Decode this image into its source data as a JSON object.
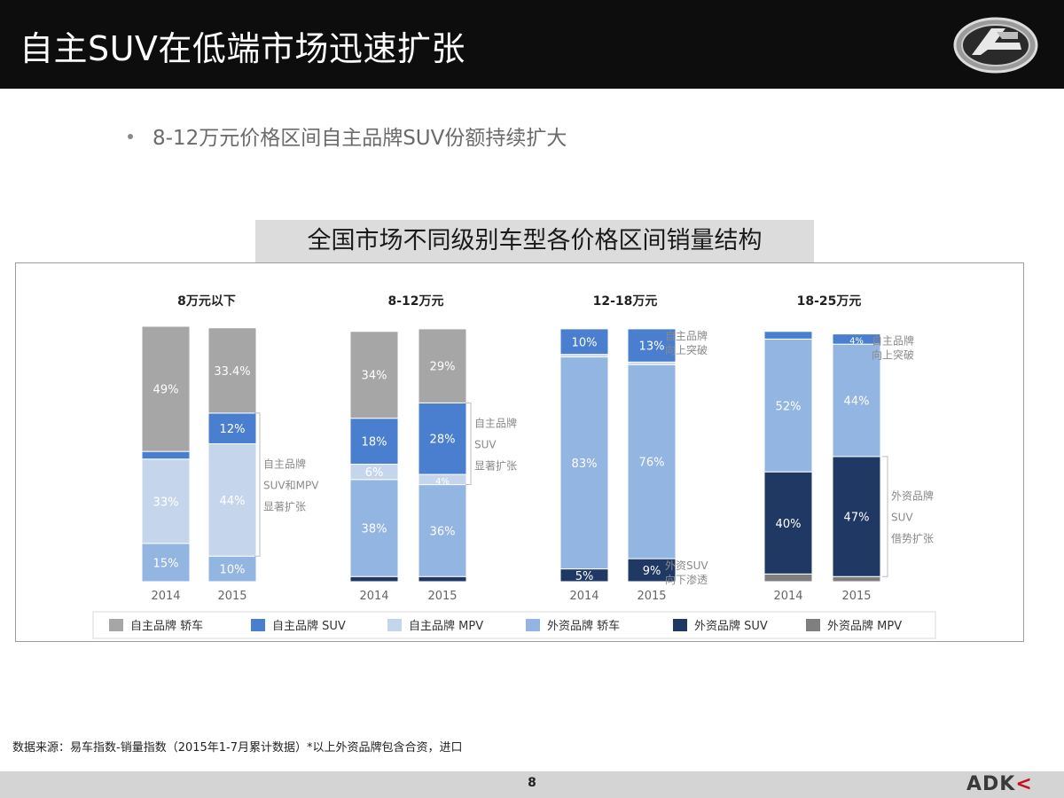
{
  "header": {
    "title": "自主SUV在低端市场迅速扩张"
  },
  "bullet": "8-12万元价格区间自主品牌SUV份额持续扩大",
  "chart_title": "全国市场不同级别车型各价格区间销量结构",
  "source": "数据来源：易车指数-销量指数（2015年1-7月累计数据）*以上外资品牌包含合资，进口",
  "page_number": "8",
  "brand": {
    "a": "ADK",
    "b": "<"
  },
  "colors": {
    "domestic_sedan": "#a6a6a6",
    "domestic_suv": "#4a7fcf",
    "domestic_mpv": "#c5d6ec",
    "foreign_sedan": "#93b5e2",
    "foreign_suv": "#1f3864",
    "foreign_mpv": "#7f7f7f",
    "header_bg": "#0d0d0d"
  },
  "chart_data": {
    "type": "bar",
    "stacked": true,
    "unit": "%",
    "ylim": [
      0,
      100
    ],
    "legend": {
      "position": "bottom",
      "entries": [
        "自主品牌 轿车",
        "自主品牌 SUV",
        "自主品牌 MPV",
        "外资品牌 轿车",
        "外资品牌 SUV",
        "外资品牌 MPV"
      ]
    },
    "series_keys": [
      "foreign_mpv",
      "foreign_suv",
      "foreign_sedan",
      "domestic_mpv",
      "domestic_suv",
      "domestic_sedan"
    ],
    "groups": [
      {
        "name": "8万元以下",
        "bars": [
          {
            "year": "2014",
            "values": {
              "foreign_mpv": 0,
              "foreign_suv": 0,
              "foreign_sedan": 15,
              "domestic_mpv": 33,
              "domestic_suv": 3,
              "domestic_sedan": 49
            },
            "labels": {
              "foreign_sedan": "15%",
              "domestic_mpv": "33%",
              "domestic_suv": "3%",
              "domestic_sedan": "49%"
            }
          },
          {
            "year": "2015",
            "values": {
              "foreign_mpv": 0,
              "foreign_suv": 0,
              "foreign_sedan": 10,
              "domestic_mpv": 44,
              "domestic_suv": 12,
              "domestic_sedan": 33.4
            },
            "labels": {
              "foreign_sedan": "10%",
              "domestic_mpv": "44%",
              "domestic_suv": "12%",
              "domestic_sedan": "33.4%"
            }
          }
        ],
        "annotation": {
          "lines": [
            "自主品牌",
            "SUV和MPV",
            "显著扩张"
          ],
          "from": [
            "2015",
            "domestic_suv"
          ],
          "to": [
            "2015",
            "domestic_mpv"
          ]
        }
      },
      {
        "name": "8-12万元",
        "bars": [
          {
            "year": "2014",
            "values": {
              "foreign_mpv": 0,
              "foreign_suv": 2,
              "foreign_sedan": 38,
              "domestic_mpv": 6,
              "domestic_suv": 18,
              "domestic_sedan": 34
            },
            "labels": {
              "foreign_suv": "2%",
              "foreign_sedan": "38%",
              "domestic_mpv": "6%",
              "domestic_suv": "18%",
              "domestic_sedan": "34%"
            }
          },
          {
            "year": "2015",
            "values": {
              "foreign_mpv": 0,
              "foreign_suv": 2,
              "foreign_sedan": 36,
              "domestic_mpv": 4,
              "domestic_suv": 28,
              "domestic_sedan": 29
            },
            "labels": {
              "foreign_suv": "2%",
              "foreign_sedan": "36%",
              "domestic_mpv": "4%",
              "domestic_suv": "28%",
              "domestic_sedan": "29%"
            }
          }
        ],
        "annotation": {
          "lines": [
            "自主品牌",
            "SUV",
            "显著扩张"
          ],
          "from": [
            "2015",
            "domestic_suv"
          ],
          "to": [
            "2015",
            "domestic_mpv"
          ]
        }
      },
      {
        "name": "12-18万元",
        "bars": [
          {
            "year": "2014",
            "values": {
              "foreign_mpv": 0,
              "foreign_suv": 5,
              "foreign_sedan": 83,
              "domestic_mpv": 1,
              "domestic_suv": 10,
              "domestic_sedan": 0
            },
            "labels": {
              "foreign_suv": "5%",
              "foreign_sedan": "83%",
              "domestic_suv": "10%"
            }
          },
          {
            "year": "2015",
            "values": {
              "foreign_mpv": 0,
              "foreign_suv": 9,
              "foreign_sedan": 76,
              "domestic_mpv": 1,
              "domestic_suv": 13,
              "domestic_sedan": 0
            },
            "labels": {
              "foreign_suv": "9%",
              "foreign_sedan": "76%",
              "domestic_suv": "13%"
            }
          }
        ],
        "annotations": [
          {
            "lines": [
              "自主品牌",
              "向上突破"
            ],
            "anchor": [
              "2015",
              "domestic_suv"
            ]
          },
          {
            "lines": [
              "外资SUV",
              "向下渗透"
            ],
            "anchor": [
              "2015",
              "foreign_suv"
            ]
          }
        ]
      },
      {
        "name": "18-25万元",
        "bars": [
          {
            "year": "2014",
            "values": {
              "foreign_mpv": 3,
              "foreign_suv": 40,
              "foreign_sedan": 52,
              "domestic_mpv": 0,
              "domestic_suv": 3,
              "domestic_sedan": 0
            },
            "labels": {
              "foreign_suv": "40%",
              "foreign_sedan": "52%",
              "domestic_suv": "3%"
            }
          },
          {
            "year": "2015",
            "values": {
              "foreign_mpv": 2,
              "foreign_suv": 47,
              "foreign_sedan": 44,
              "domestic_mpv": 0,
              "domestic_suv": 4,
              "domestic_sedan": 0
            },
            "labels": {
              "foreign_suv": "47%",
              "foreign_sedan": "44%",
              "domestic_suv": "4%"
            }
          }
        ],
        "annotations": [
          {
            "lines": [
              "自主品牌",
              "向上突破"
            ],
            "anchor": [
              "2015",
              "domestic_suv"
            ]
          },
          {
            "lines": [
              "外资品牌",
              "SUV",
              "借势扩张"
            ],
            "bracket": [
              "2015",
              "foreign_suv"
            ]
          }
        ]
      }
    ]
  }
}
